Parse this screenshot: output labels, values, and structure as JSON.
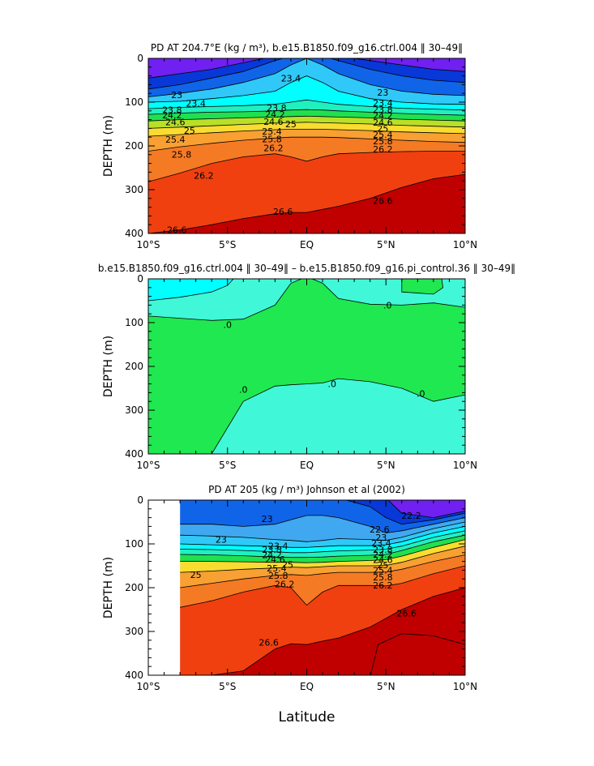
{
  "figure": {
    "xlabel": "Latitude",
    "colors": {
      "rd_deep": "#c00000",
      "rd": "#e00000",
      "rd_orange": "#f04010",
      "orange": "#f57a24",
      "orange_light": "#f8a032",
      "yellow": "#f8dc30",
      "yellow_green": "#b8e028",
      "green": "#20e050",
      "cyan_green": "#20f0c0",
      "cyan": "#00ffff",
      "sky": "#30c8f8",
      "light_blue": "#40a8f0",
      "blue": "#1064e8",
      "deep_blue": "#0838d8",
      "violet": "#7020f0",
      "diff_cyan": "#00ffff",
      "diff_aqua": "#40f8d8",
      "diff_green": "#20e850"
    }
  },
  "chart_data": [
    {
      "type": "contour",
      "title": "PD AT 204.7°E (kg / m³), b.e15.B1850.f09_g16.ctrl.004 ‖ 30–49‖",
      "ylabel": "DEPTH (m)",
      "xlim": [
        -10,
        10
      ],
      "ylim": [
        400,
        0
      ],
      "x_ticks": [
        -10,
        -5,
        0,
        5,
        10
      ],
      "x_tick_labels": [
        "10°S",
        "5°S",
        "EQ",
        "5°N",
        "10°N"
      ],
      "y_ticks": [
        0,
        100,
        200,
        300,
        400
      ],
      "y_tick_labels": [
        "0",
        "100",
        "200",
        "300",
        "400"
      ],
      "contour_levels": [
        22.2,
        22.6,
        23,
        23.4,
        23.8,
        24.2,
        24.6,
        25,
        25.4,
        25.8,
        26.2,
        26.6
      ],
      "contour_labels": [
        {
          "text": "23.4",
          "x": -1.0,
          "y": 45
        },
        {
          "text": "23",
          "x": 4.8,
          "y": 78
        },
        {
          "text": "23",
          "x": -8.2,
          "y": 83
        },
        {
          "text": "23.4",
          "x": -7.0,
          "y": 103
        },
        {
          "text": "23.8",
          "x": -8.5,
          "y": 118
        },
        {
          "text": "24.2",
          "x": -8.5,
          "y": 130
        },
        {
          "text": "24.6",
          "x": -8.3,
          "y": 145
        },
        {
          "text": "25",
          "x": -7.4,
          "y": 165
        },
        {
          "text": "25.4",
          "x": -8.3,
          "y": 185
        },
        {
          "text": "25.8",
          "x": -7.9,
          "y": 219
        },
        {
          "text": "26.2",
          "x": -6.5,
          "y": 268
        },
        {
          "text": "26.6",
          "x": -8.2,
          "y": 392
        },
        {
          "text": "23.8",
          "x": -1.9,
          "y": 113
        },
        {
          "text": "24.2",
          "x": -2.0,
          "y": 128
        },
        {
          "text": "24.6",
          "x": -2.1,
          "y": 144
        },
        {
          "text": "25",
          "x": -1.0,
          "y": 150
        },
        {
          "text": "25.4",
          "x": -2.2,
          "y": 167
        },
        {
          "text": "25.8",
          "x": -2.2,
          "y": 184
        },
        {
          "text": "26.2",
          "x": -2.1,
          "y": 205
        },
        {
          "text": "26.6",
          "x": -1.5,
          "y": 350
        },
        {
          "text": "23.4",
          "x": 4.8,
          "y": 102
        },
        {
          "text": "23.8",
          "x": 4.8,
          "y": 117
        },
        {
          "text": "24.2",
          "x": 4.8,
          "y": 131
        },
        {
          "text": "24.6",
          "x": 4.8,
          "y": 146
        },
        {
          "text": "25",
          "x": 4.8,
          "y": 160
        },
        {
          "text": "25.4",
          "x": 4.8,
          "y": 174
        },
        {
          "text": "25.8",
          "x": 4.8,
          "y": 189
        },
        {
          "text": "26.2",
          "x": 4.8,
          "y": 207
        },
        {
          "text": "26.6",
          "x": 4.8,
          "y": 325
        }
      ]
    },
    {
      "type": "contour",
      "title": "b.e15.B1850.f09_g16.ctrl.004 ‖ 30–49‖ – b.e15.B1850.f09_g16.pi_control.36 ‖ 30–49‖",
      "ylabel": "DEPTH (m)",
      "xlim": [
        -10,
        10
      ],
      "ylim": [
        400,
        0
      ],
      "x_ticks": [
        -10,
        -5,
        0,
        5,
        10
      ],
      "x_tick_labels": [
        "10°S",
        "5°S",
        "EQ",
        "5°N",
        "10°N"
      ],
      "y_ticks": [
        0,
        100,
        200,
        300,
        400
      ],
      "y_tick_labels": [
        "0",
        "100",
        "200",
        "300",
        "400"
      ],
      "contour_labels": [
        {
          "text": ".0",
          "x": 5.1,
          "y": 60
        },
        {
          "text": ".0",
          "x": -5.0,
          "y": 105
        },
        {
          "text": ".0",
          "x": -4.0,
          "y": 253
        },
        {
          "text": ".0",
          "x": 1.6,
          "y": 240
        },
        {
          "text": ".0",
          "x": 7.2,
          "y": 262
        }
      ]
    },
    {
      "type": "contour",
      "title": "PD AT 205 (kg / m³) Johnson et al (2002)",
      "xlabel": "Latitude",
      "ylabel": "DEPTH (m)",
      "xlim": [
        -10,
        10
      ],
      "ylim": [
        400,
        0
      ],
      "data_x_range": [
        -8,
        10
      ],
      "x_ticks": [
        -10,
        -5,
        0,
        5,
        10
      ],
      "x_tick_labels": [
        "10°S",
        "5°S",
        "EQ",
        "5°N",
        "10°N"
      ],
      "y_ticks": [
        0,
        100,
        200,
        300,
        400
      ],
      "y_tick_labels": [
        "0",
        "100",
        "200",
        "300",
        "400"
      ],
      "contour_labels": [
        {
          "text": "22.2",
          "x": 6.6,
          "y": 35
        },
        {
          "text": "22.6",
          "x": 4.6,
          "y": 67
        },
        {
          "text": "23",
          "x": -2.5,
          "y": 43
        },
        {
          "text": "23",
          "x": -5.4,
          "y": 90
        },
        {
          "text": "23",
          "x": 4.7,
          "y": 85
        },
        {
          "text": "23.4",
          "x": -1.8,
          "y": 105
        },
        {
          "text": "23.4",
          "x": 4.7,
          "y": 98
        },
        {
          "text": "23.8",
          "x": -2.2,
          "y": 113
        },
        {
          "text": "24.2",
          "x": -2.2,
          "y": 125
        },
        {
          "text": "24.6",
          "x": -2.0,
          "y": 135
        },
        {
          "text": "25",
          "x": -1.2,
          "y": 147
        },
        {
          "text": "25.4",
          "x": -1.9,
          "y": 156
        },
        {
          "text": "25.8",
          "x": -1.8,
          "y": 172
        },
        {
          "text": "26.2",
          "x": -1.4,
          "y": 192
        },
        {
          "text": "23.8",
          "x": 4.8,
          "y": 113
        },
        {
          "text": "24.2",
          "x": 4.8,
          "y": 124
        },
        {
          "text": "24.6",
          "x": 4.8,
          "y": 136
        },
        {
          "text": "25",
          "x": 4.8,
          "y": 148
        },
        {
          "text": "25.4",
          "x": 4.8,
          "y": 160
        },
        {
          "text": "25.8",
          "x": 4.8,
          "y": 176
        },
        {
          "text": "26.2",
          "x": 4.8,
          "y": 194
        },
        {
          "text": "25",
          "x": -7.0,
          "y": 170
        },
        {
          "text": "26.6",
          "x": -2.4,
          "y": 325
        },
        {
          "text": "26.6",
          "x": 6.3,
          "y": 258
        }
      ]
    }
  ]
}
